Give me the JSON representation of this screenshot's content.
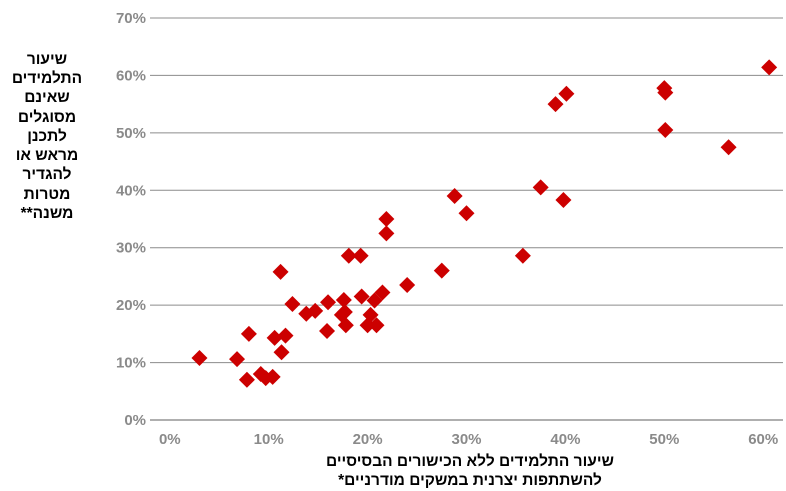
{
  "chart_data": {
    "type": "scatter",
    "xlabel_line1": "שיעור התלמידים ללא הכישורים הבסיסיים",
    "xlabel_line2": "להשתתפות יצרנית במשקים מודרניים*",
    "ylabel": "שיעור התלמידים שאינם מסוגלים לתכנן מראש או להגדיר מטרות משנה**",
    "xlim": [
      -0.02,
      0.62
    ],
    "ylim": [
      0,
      0.7
    ],
    "xticks": [
      0,
      0.1,
      0.2,
      0.3,
      0.4,
      0.5,
      0.6
    ],
    "xtick_labels": [
      "0%",
      "10%",
      "20%",
      "30%",
      "40%",
      "50%",
      "60%"
    ],
    "yticks": [
      0,
      0.1,
      0.2,
      0.3,
      0.4,
      0.5,
      0.6,
      0.7
    ],
    "ytick_labels": [
      "0%",
      "10%",
      "20%",
      "30%",
      "40%",
      "50%",
      "60%",
      "70%"
    ],
    "grid": "horizontal",
    "marker": "diamond",
    "marker_color": "#cc0000",
    "points": [
      [
        0.03,
        0.108
      ],
      [
        0.068,
        0.106
      ],
      [
        0.078,
        0.07
      ],
      [
        0.08,
        0.15
      ],
      [
        0.092,
        0.08
      ],
      [
        0.097,
        0.073
      ],
      [
        0.104,
        0.075
      ],
      [
        0.106,
        0.143
      ],
      [
        0.112,
        0.258
      ],
      [
        0.113,
        0.118
      ],
      [
        0.117,
        0.147
      ],
      [
        0.124,
        0.202
      ],
      [
        0.138,
        0.185
      ],
      [
        0.147,
        0.19
      ],
      [
        0.159,
        0.155
      ],
      [
        0.16,
        0.205
      ],
      [
        0.174,
        0.183
      ],
      [
        0.176,
        0.209
      ],
      [
        0.177,
        0.188
      ],
      [
        0.178,
        0.165
      ],
      [
        0.181,
        0.286
      ],
      [
        0.193,
        0.286
      ],
      [
        0.194,
        0.215
      ],
      [
        0.2,
        0.165
      ],
      [
        0.203,
        0.183
      ],
      [
        0.207,
        0.208
      ],
      [
        0.209,
        0.165
      ],
      [
        0.215,
        0.222
      ],
      [
        0.219,
        0.35
      ],
      [
        0.219,
        0.325
      ],
      [
        0.24,
        0.235
      ],
      [
        0.275,
        0.26
      ],
      [
        0.288,
        0.39
      ],
      [
        0.3,
        0.36
      ],
      [
        0.357,
        0.286
      ],
      [
        0.375,
        0.405
      ],
      [
        0.39,
        0.55
      ],
      [
        0.398,
        0.383
      ],
      [
        0.401,
        0.568
      ],
      [
        0.5,
        0.578
      ],
      [
        0.501,
        0.505
      ],
      [
        0.501,
        0.57
      ],
      [
        0.565,
        0.475
      ],
      [
        0.606,
        0.614
      ]
    ]
  }
}
